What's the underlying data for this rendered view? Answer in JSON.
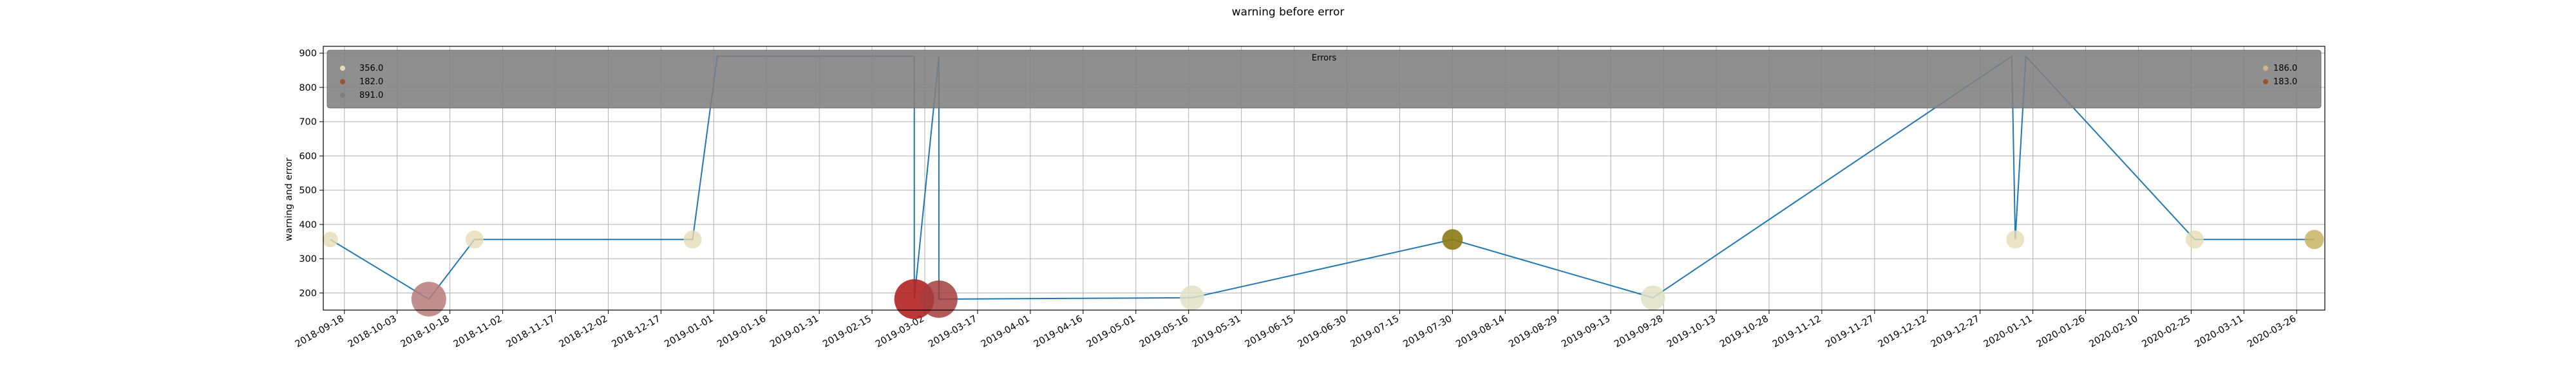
{
  "chart_data": {
    "type": "line",
    "title": "warning before error",
    "xlabel": "",
    "ylabel": "warning and error",
    "x_ticks": [
      "2018-09-18",
      "2018-10-03",
      "2018-10-18",
      "2018-11-02",
      "2018-11-17",
      "2018-12-02",
      "2018-12-17",
      "2019-01-01",
      "2019-01-16",
      "2019-01-31",
      "2019-02-15",
      "2019-03-02",
      "2019-03-17",
      "2019-04-01",
      "2019-04-16",
      "2019-05-01",
      "2019-05-16",
      "2019-05-31",
      "2019-06-15",
      "2019-06-30",
      "2019-07-15",
      "2019-07-30",
      "2019-08-14",
      "2019-08-29",
      "2019-09-13",
      "2019-09-28",
      "2019-10-13",
      "2019-10-28",
      "2019-11-12",
      "2019-11-27",
      "2019-12-12",
      "2019-12-27",
      "2020-01-11",
      "2020-01-26",
      "2020-02-10",
      "2020-02-25",
      "2020-03-11",
      "2020-03-26"
    ],
    "y_ticks": [
      200,
      300,
      400,
      500,
      600,
      700,
      800,
      900
    ],
    "xlim": [
      "2018-09-12",
      "2020-04-03"
    ],
    "ylim": [
      150,
      920
    ],
    "grid": true,
    "line_color": "#1f77b4",
    "series": [
      {
        "x": [
          "2018-09-14",
          "2018-10-12",
          "2018-10-25",
          "2018-12-26",
          "2019-01-02",
          "2019-02-27",
          "2019-02-27",
          "2019-03-06",
          "2019-03-06",
          "2019-05-17",
          "2019-07-30",
          "2019-09-25",
          "2020-01-05",
          "2020-01-06",
          "2020-01-09",
          "2020-02-26",
          "2020-03-31"
        ],
        "y": [
          356,
          182,
          356,
          356,
          891,
          891,
          182,
          891,
          182,
          186,
          356,
          186,
          891,
          356,
          891,
          356,
          356
        ]
      }
    ],
    "markers": [
      {
        "x": "2018-09-14",
        "y": 356,
        "size": 12,
        "color": "#e6dcb4",
        "alpha": 0.8
      },
      {
        "x": "2018-10-12",
        "y": 182,
        "size": 27,
        "color": "#b87a7a",
        "alpha": 0.85
      },
      {
        "x": "2018-10-25",
        "y": 356,
        "size": 14,
        "color": "#e6dcb4",
        "alpha": 0.8
      },
      {
        "x": "2018-12-26",
        "y": 356,
        "size": 14,
        "color": "#e6dcb4",
        "alpha": 0.8
      },
      {
        "x": "2019-02-27",
        "y": 182,
        "size": 31,
        "color": "#b22222",
        "alpha": 0.9
      },
      {
        "x": "2019-03-06",
        "y": 182,
        "size": 29,
        "color": "#a53c3c",
        "alpha": 0.85
      },
      {
        "x": "2019-05-17",
        "y": 186,
        "size": 19,
        "color": "#dfe2c4",
        "alpha": 0.85
      },
      {
        "x": "2019-07-30",
        "y": 356,
        "size": 16,
        "color": "#8b7a14",
        "alpha": 0.9
      },
      {
        "x": "2019-09-25",
        "y": 186,
        "size": 19,
        "color": "#dfe2c4",
        "alpha": 0.85
      },
      {
        "x": "2020-01-06",
        "y": 356,
        "size": 14,
        "color": "#e6dcb4",
        "alpha": 0.8
      },
      {
        "x": "2020-02-26",
        "y": 356,
        "size": 14,
        "color": "#e6dcb4",
        "alpha": 0.8
      },
      {
        "x": "2020-03-31",
        "y": 356,
        "size": 15,
        "color": "#c8b464",
        "alpha": 0.85
      }
    ],
    "legend": {
      "title": "Errors",
      "placement": "top",
      "background": "#808080",
      "left_entries": [
        {
          "label": "356.0",
          "color": "#e6dcb4"
        },
        {
          "label": "182.0",
          "color": "#a0522d"
        },
        {
          "label": "891.0",
          "color": "#7f7f7f"
        }
      ],
      "right_entries": [
        {
          "label": "186.0",
          "color": "#d2b48c"
        },
        {
          "label": "183.0",
          "color": "#a0522d"
        }
      ]
    }
  }
}
